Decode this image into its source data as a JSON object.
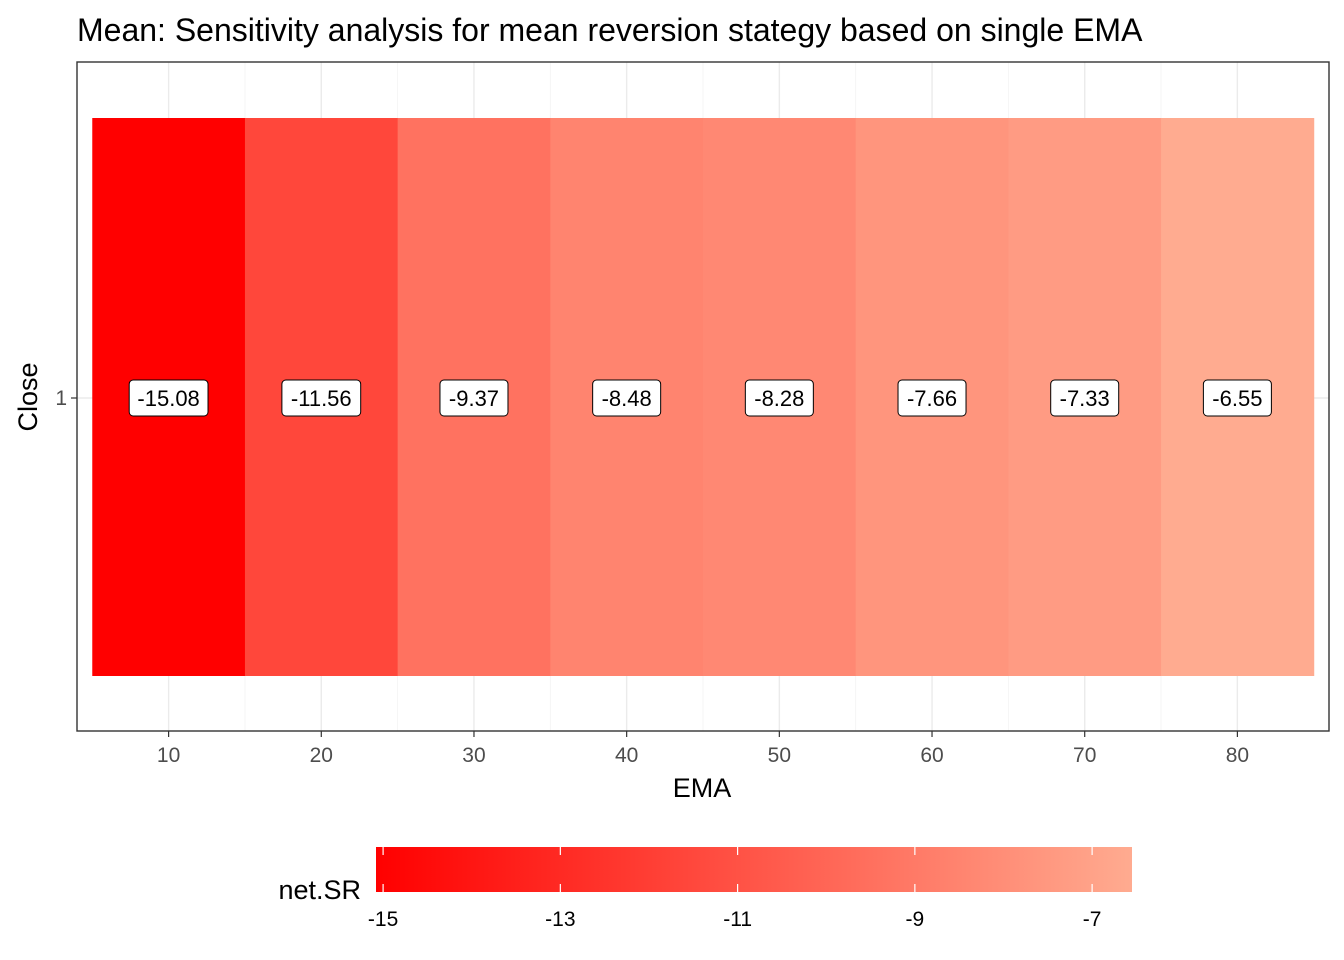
{
  "chart_data": {
    "type": "heatmap",
    "title": "Mean: Sensitivity analysis for mean reversion stategy based on single EMA",
    "xlabel": "EMA",
    "ylabel": "Close",
    "x": [
      10,
      20,
      30,
      40,
      50,
      60,
      70,
      80
    ],
    "y_categories": [
      "1"
    ],
    "values": [
      -15.08,
      -11.56,
      -9.37,
      -8.48,
      -8.28,
      -7.66,
      -7.33,
      -6.55
    ],
    "value_labels": [
      "-15.08",
      "-11.56",
      "-9.37",
      "-8.48",
      "-8.28",
      "-7.66",
      "-7.33",
      "-6.55"
    ],
    "x_ticks": [
      10,
      20,
      30,
      40,
      50,
      60,
      70,
      80
    ],
    "x_tick_labels": [
      "10",
      "20",
      "30",
      "40",
      "50",
      "60",
      "70",
      "80"
    ],
    "y_tick_labels": [
      "1"
    ],
    "xlim": [
      4,
      86
    ],
    "grid": true,
    "legend": {
      "title": "net.SR",
      "position": "bottom",
      "ticks": [
        -15,
        -13,
        -11,
        -9,
        -7
      ],
      "tick_labels": [
        "-15",
        "-13",
        "-11",
        "-9",
        "-7"
      ],
      "range": [
        -15.08,
        -6.55
      ],
      "low_color": "#ff0000",
      "high_color": "#ffab90"
    }
  }
}
